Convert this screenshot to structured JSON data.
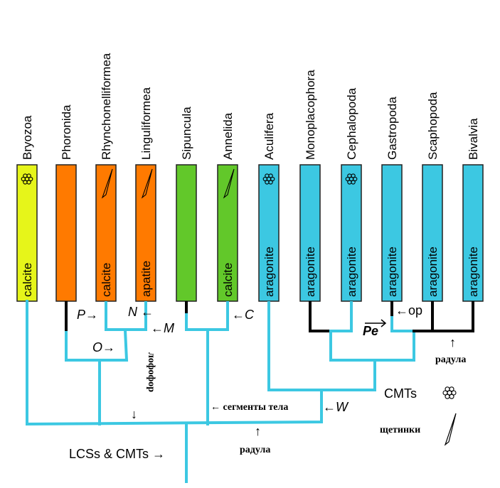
{
  "taxa": [
    {
      "name": "Bryozoa",
      "mineral": "calcite",
      "color": "#e6f51a",
      "icon": "cmt-flower-icon"
    },
    {
      "name": "Phoronida",
      "mineral": "",
      "color": "#ff7a00",
      "icon": ""
    },
    {
      "name": "Rhynchonelliformea",
      "mineral": "calcite",
      "color": "#ff7a00",
      "icon": "chaeta-icon"
    },
    {
      "name": "Linguliformea",
      "mineral": "apatite",
      "color": "#ff7a00",
      "icon": "chaeta-icon"
    },
    {
      "name": "Sipuncula",
      "mineral": "",
      "color": "#62c82a",
      "icon": ""
    },
    {
      "name": "Annelida",
      "mineral": "calcite",
      "color": "#62c82a",
      "icon": "chaeta-icon"
    },
    {
      "name": "Aculifera",
      "mineral": "aragonite",
      "color": "#3cc8e2",
      "icon": "cmt-flower-icon"
    },
    {
      "name": "Monoplacophora",
      "mineral": "aragonite",
      "color": "#3cc8e2",
      "icon": ""
    },
    {
      "name": "Cephalopoda",
      "mineral": "aragonite",
      "color": "#3cc8e2",
      "icon": "cmt-flower-icon"
    },
    {
      "name": "Gastropoda",
      "mineral": "aragonite",
      "color": "#3cc8e2",
      "icon": ""
    },
    {
      "name": "Scaphopoda",
      "mineral": "aragonite",
      "color": "#3cc8e2",
      "icon": ""
    },
    {
      "name": "Bivalvia",
      "mineral": "aragonite",
      "color": "#3cc8e2",
      "icon": ""
    }
  ],
  "annotations": {
    "P": "P→",
    "N": "N ←",
    "M": "←M",
    "O": "O→",
    "C": "←C",
    "op": "←op",
    "Pe": "Pe",
    "W": "←W",
    "lophophore": "лофофор",
    "lophophore_arrow": "↓",
    "segments": "← сегменты тела",
    "radula_arrow_1": "↑",
    "radula_1": "радула",
    "radula_arrow_2": "↑",
    "radula_2": "радула",
    "root": "LCSs & CMTs →"
  },
  "legend": {
    "cmts": "CMTs",
    "chaetae": "щетинки"
  },
  "colors": {
    "tree": "#3cc8e2",
    "lost": "#000000",
    "bryozoa": "#e6f51a",
    "brachiopods": "#ff7a00",
    "annelids": "#62c82a",
    "molluscs": "#3cc8e2"
  }
}
